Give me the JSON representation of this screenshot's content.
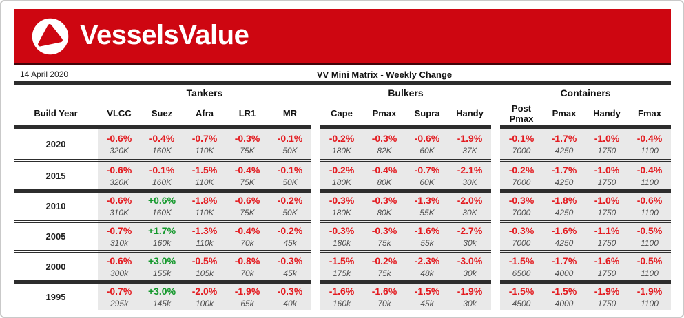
{
  "brand": {
    "name": "VesselsValue",
    "logo_icon": "play-triangle-icon"
  },
  "report": {
    "date": "14 April 2020",
    "title": "VV Mini Matrix - Weekly Change"
  },
  "matrix": {
    "row_header": "Build Year",
    "groups": [
      {
        "label": "Tankers",
        "columns": [
          "VLCC",
          "Suez",
          "Afra",
          "LR1",
          "MR"
        ]
      },
      {
        "label": "Bulkers",
        "columns": [
          "Cape",
          "Pmax",
          "Supra",
          "Handy"
        ]
      },
      {
        "label": "Containers",
        "columns": [
          "Post Pmax",
          "Pmax",
          "Handy",
          "Fmax"
        ]
      }
    ],
    "rows": [
      {
        "year": "2020",
        "cells": [
          {
            "change": "-0.6%",
            "size": "320K"
          },
          {
            "change": "-0.4%",
            "size": "160K"
          },
          {
            "change": "-0.7%",
            "size": "110K"
          },
          {
            "change": "-0.3%",
            "size": "75K"
          },
          {
            "change": "-0.1%",
            "size": "50K"
          },
          {
            "change": "-0.2%",
            "size": "180K"
          },
          {
            "change": "-0.3%",
            "size": "82K"
          },
          {
            "change": "-0.6%",
            "size": "60K"
          },
          {
            "change": "-1.9%",
            "size": "37K"
          },
          {
            "change": "-0.1%",
            "size": "7000"
          },
          {
            "change": "-1.7%",
            "size": "4250"
          },
          {
            "change": "-1.0%",
            "size": "1750"
          },
          {
            "change": "-0.4%",
            "size": "1100"
          }
        ]
      },
      {
        "year": "2015",
        "cells": [
          {
            "change": "-0.6%",
            "size": "320K"
          },
          {
            "change": "-0.1%",
            "size": "160K"
          },
          {
            "change": "-1.5%",
            "size": "110K"
          },
          {
            "change": "-0.4%",
            "size": "75K"
          },
          {
            "change": "-0.1%",
            "size": "50K"
          },
          {
            "change": "-0.2%",
            "size": "180K"
          },
          {
            "change": "-0.4%",
            "size": "80K"
          },
          {
            "change": "-0.7%",
            "size": "60K"
          },
          {
            "change": "-2.1%",
            "size": "30K"
          },
          {
            "change": "-0.2%",
            "size": "7000"
          },
          {
            "change": "-1.7%",
            "size": "4250"
          },
          {
            "change": "-1.0%",
            "size": "1750"
          },
          {
            "change": "-0.4%",
            "size": "1100"
          }
        ]
      },
      {
        "year": "2010",
        "cells": [
          {
            "change": "-0.6%",
            "size": "310K"
          },
          {
            "change": "+0.6%",
            "size": "160K"
          },
          {
            "change": "-1.8%",
            "size": "110K"
          },
          {
            "change": "-0.6%",
            "size": "75K"
          },
          {
            "change": "-0.2%",
            "size": "50K"
          },
          {
            "change": "-0.3%",
            "size": "180K"
          },
          {
            "change": "-0.3%",
            "size": "80K"
          },
          {
            "change": "-1.3%",
            "size": "55K"
          },
          {
            "change": "-2.0%",
            "size": "30K"
          },
          {
            "change": "-0.3%",
            "size": "7000"
          },
          {
            "change": "-1.8%",
            "size": "4250"
          },
          {
            "change": "-1.0%",
            "size": "1750"
          },
          {
            "change": "-0.6%",
            "size": "1100"
          }
        ]
      },
      {
        "year": "2005",
        "cells": [
          {
            "change": "-0.7%",
            "size": "310k"
          },
          {
            "change": "+1.7%",
            "size": "160k"
          },
          {
            "change": "-1.3%",
            "size": "110k"
          },
          {
            "change": "-0.4%",
            "size": "70k"
          },
          {
            "change": "-0.2%",
            "size": "45k"
          },
          {
            "change": "-0.3%",
            "size": "180k"
          },
          {
            "change": "-0.3%",
            "size": "75k"
          },
          {
            "change": "-1.6%",
            "size": "55k"
          },
          {
            "change": "-2.7%",
            "size": "30k"
          },
          {
            "change": "-0.3%",
            "size": "7000"
          },
          {
            "change": "-1.6%",
            "size": "4250"
          },
          {
            "change": "-1.1%",
            "size": "1750"
          },
          {
            "change": "-0.5%",
            "size": "1100"
          }
        ]
      },
      {
        "year": "2000",
        "cells": [
          {
            "change": "-0.6%",
            "size": "300k"
          },
          {
            "change": "+3.0%",
            "size": "155k"
          },
          {
            "change": "-0.5%",
            "size": "105k"
          },
          {
            "change": "-0.8%",
            "size": "70k"
          },
          {
            "change": "-0.3%",
            "size": "45k"
          },
          {
            "change": "-1.5%",
            "size": "175k"
          },
          {
            "change": "-0.2%",
            "size": "75k"
          },
          {
            "change": "-2.3%",
            "size": "48k"
          },
          {
            "change": "-3.0%",
            "size": "30k"
          },
          {
            "change": "-1.5%",
            "size": "6500"
          },
          {
            "change": "-1.7%",
            "size": "4000"
          },
          {
            "change": "-1.6%",
            "size": "1750"
          },
          {
            "change": "-0.5%",
            "size": "1100"
          }
        ]
      },
      {
        "year": "1995",
        "cells": [
          {
            "change": "-0.7%",
            "size": "295k"
          },
          {
            "change": "+3.0%",
            "size": "145k"
          },
          {
            "change": "-2.0%",
            "size": "100k"
          },
          {
            "change": "-1.9%",
            "size": "65k"
          },
          {
            "change": "-0.3%",
            "size": "40k"
          },
          {
            "change": "-1.6%",
            "size": "160k"
          },
          {
            "change": "-1.6%",
            "size": "70k"
          },
          {
            "change": "-1.5%",
            "size": "45k"
          },
          {
            "change": "-1.9%",
            "size": "30k"
          },
          {
            "change": "-1.5%",
            "size": "4500"
          },
          {
            "change": "-1.5%",
            "size": "4000"
          },
          {
            "change": "-1.9%",
            "size": "1750"
          },
          {
            "change": "-1.9%",
            "size": "1100"
          }
        ]
      }
    ]
  },
  "colors": {
    "banner_red": "#ce0611",
    "banner_shadow": "#40050a",
    "negative_red": "#e31b20",
    "positive_green": "#13982b",
    "cell_background": "#e9e9e9",
    "rule_color": "#2d2d2d",
    "frame_gray": "#c9c9c9"
  }
}
